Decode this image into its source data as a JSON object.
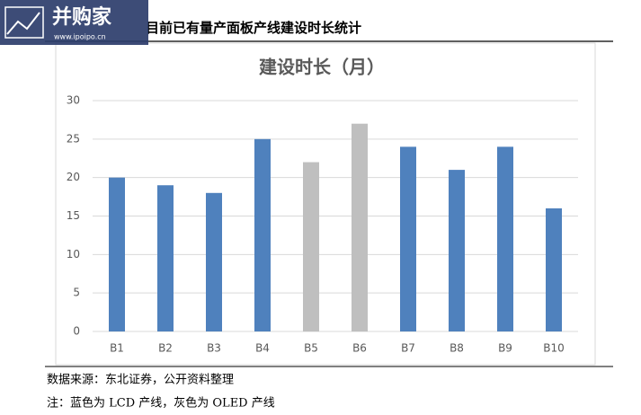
{
  "header": {
    "title": "目前已有量产面板产线建设时长统计",
    "logo": "并购家",
    "logo_url": "www.ipoipo.cn"
  },
  "chart_data": {
    "type": "bar",
    "title": "建设时长（月）",
    "categories": [
      "B1",
      "B2",
      "B3",
      "B4",
      "B5",
      "B6",
      "B7",
      "B8",
      "B9",
      "B10"
    ],
    "values": [
      20,
      19,
      18,
      25,
      22,
      27,
      24,
      21,
      24,
      16
    ],
    "colors": [
      "#4f81bd",
      "#4f81bd",
      "#4f81bd",
      "#4f81bd",
      "#bfbfbf",
      "#bfbfbf",
      "#4f81bd",
      "#4f81bd",
      "#4f81bd",
      "#4f81bd"
    ],
    "ylim": [
      0,
      30
    ],
    "yticks": [
      0,
      5,
      10,
      15,
      20,
      25,
      30
    ],
    "grid": true
  },
  "footer": {
    "source": "数据来源：东北证券，公开资料整理",
    "note": "注：蓝色为 LCD 产线，灰色为 OLED 产线"
  }
}
